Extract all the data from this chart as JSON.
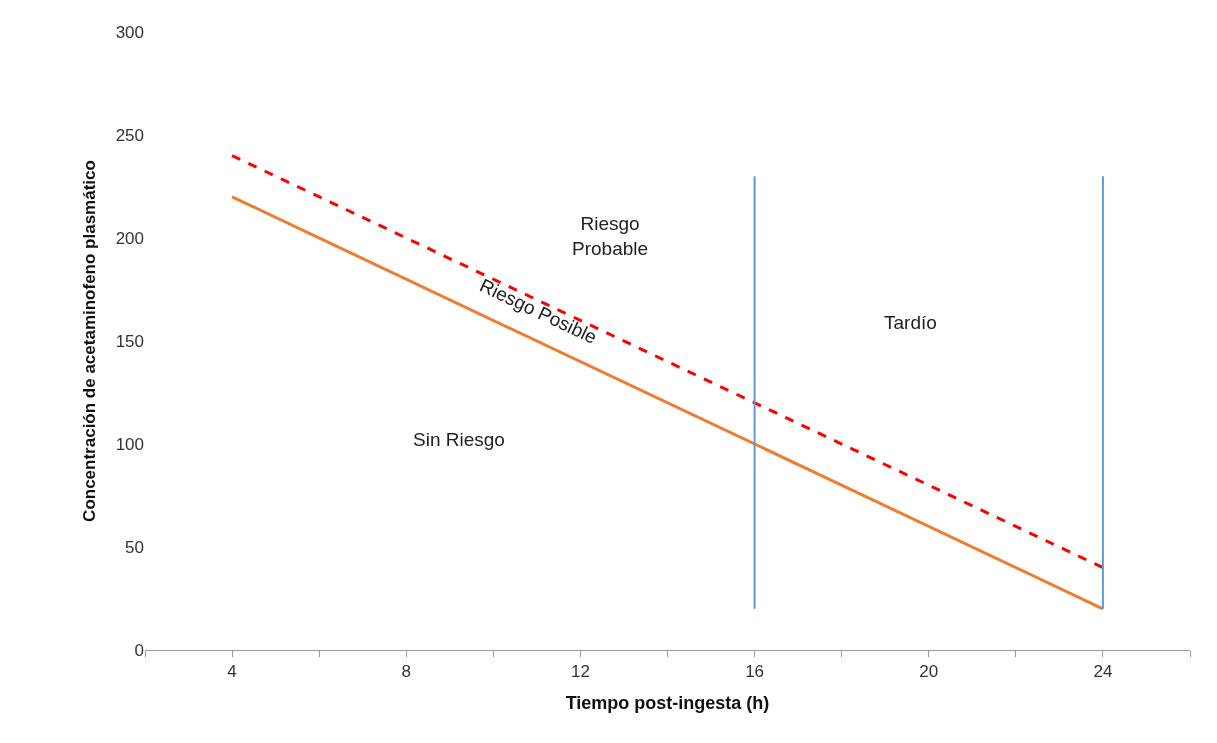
{
  "chart_data": {
    "type": "line",
    "xlabel": "Tiempo post-ingesta (h)",
    "ylabel": "Concentración de acetaminofeno plasmático",
    "xlim": [
      2,
      26
    ],
    "xticks": [
      {
        "value": 2,
        "label": null
      },
      4,
      {
        "value": 6,
        "label": null
      },
      8,
      {
        "value": 10,
        "label": null
      },
      12,
      {
        "value": 14,
        "label": null
      },
      16,
      {
        "value": 18,
        "label": null
      },
      20,
      {
        "value": 22,
        "label": null
      },
      24,
      {
        "value": 26,
        "label": null
      }
    ],
    "ylim": [
      0,
      300
    ],
    "yticks": [
      0,
      50,
      100,
      150,
      200,
      250,
      300
    ],
    "grid": false,
    "marker": "none",
    "series": [
      {
        "x": [
          4,
          24
        ],
        "values": [
          220,
          20
        ],
        "color": "#ed7d31",
        "line_style": "solid"
      },
      {
        "x": [
          4,
          24
        ],
        "values": [
          240,
          40
        ],
        "color": "#ff0000",
        "line_style": "dashed"
      },
      {
        "x": [
          16,
          16
        ],
        "values": [
          20,
          230
        ],
        "color": "#5b9bd5",
        "line_style": "solid"
      },
      {
        "x": [
          24,
          24
        ],
        "values": [
          20,
          230
        ],
        "color": "#5b9bd5",
        "line_style": "solid"
      }
    ],
    "annotations": [
      "Riesgo\nProbable",
      "Riesgo Posible",
      "Tardío",
      "Sin Riesgo"
    ]
  }
}
